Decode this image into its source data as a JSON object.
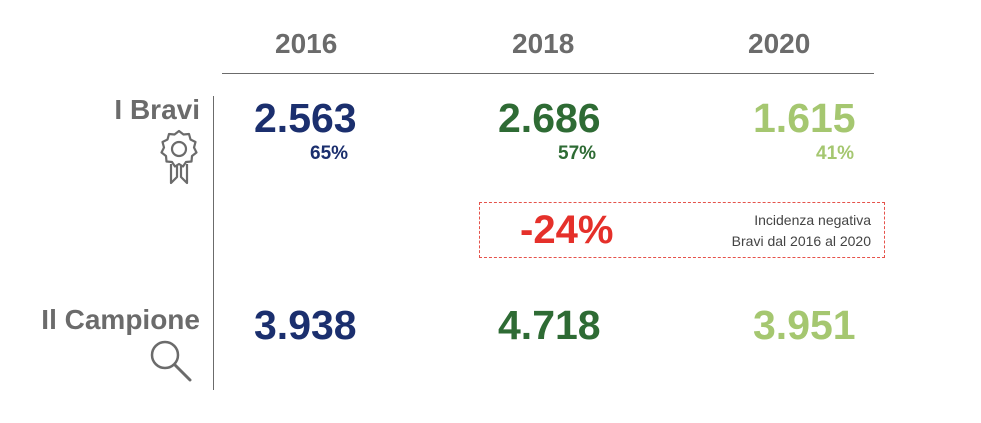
{
  "columns": [
    "2016",
    "2018",
    "2020"
  ],
  "rows": {
    "bravi": {
      "label": "I Bravi",
      "values": [
        "2.563",
        "2.686",
        "1.615"
      ],
      "percents": [
        "65%",
        "57%",
        "41%"
      ]
    },
    "campione": {
      "label": "Il Campione",
      "values": [
        "3.938",
        "4.718",
        "3.951"
      ]
    }
  },
  "callout": {
    "value": "-24%",
    "line1": "Incidenza negativa",
    "line2": "Bravi dal 2016 al 2020"
  },
  "colors": {
    "y2016": "#1b2f6e",
    "y2018": "#2e6b34",
    "y2020": "#a5c770",
    "negative": "#e5302a",
    "label": "#6b6b6b"
  },
  "icons": [
    "award-icon",
    "search-icon"
  ]
}
